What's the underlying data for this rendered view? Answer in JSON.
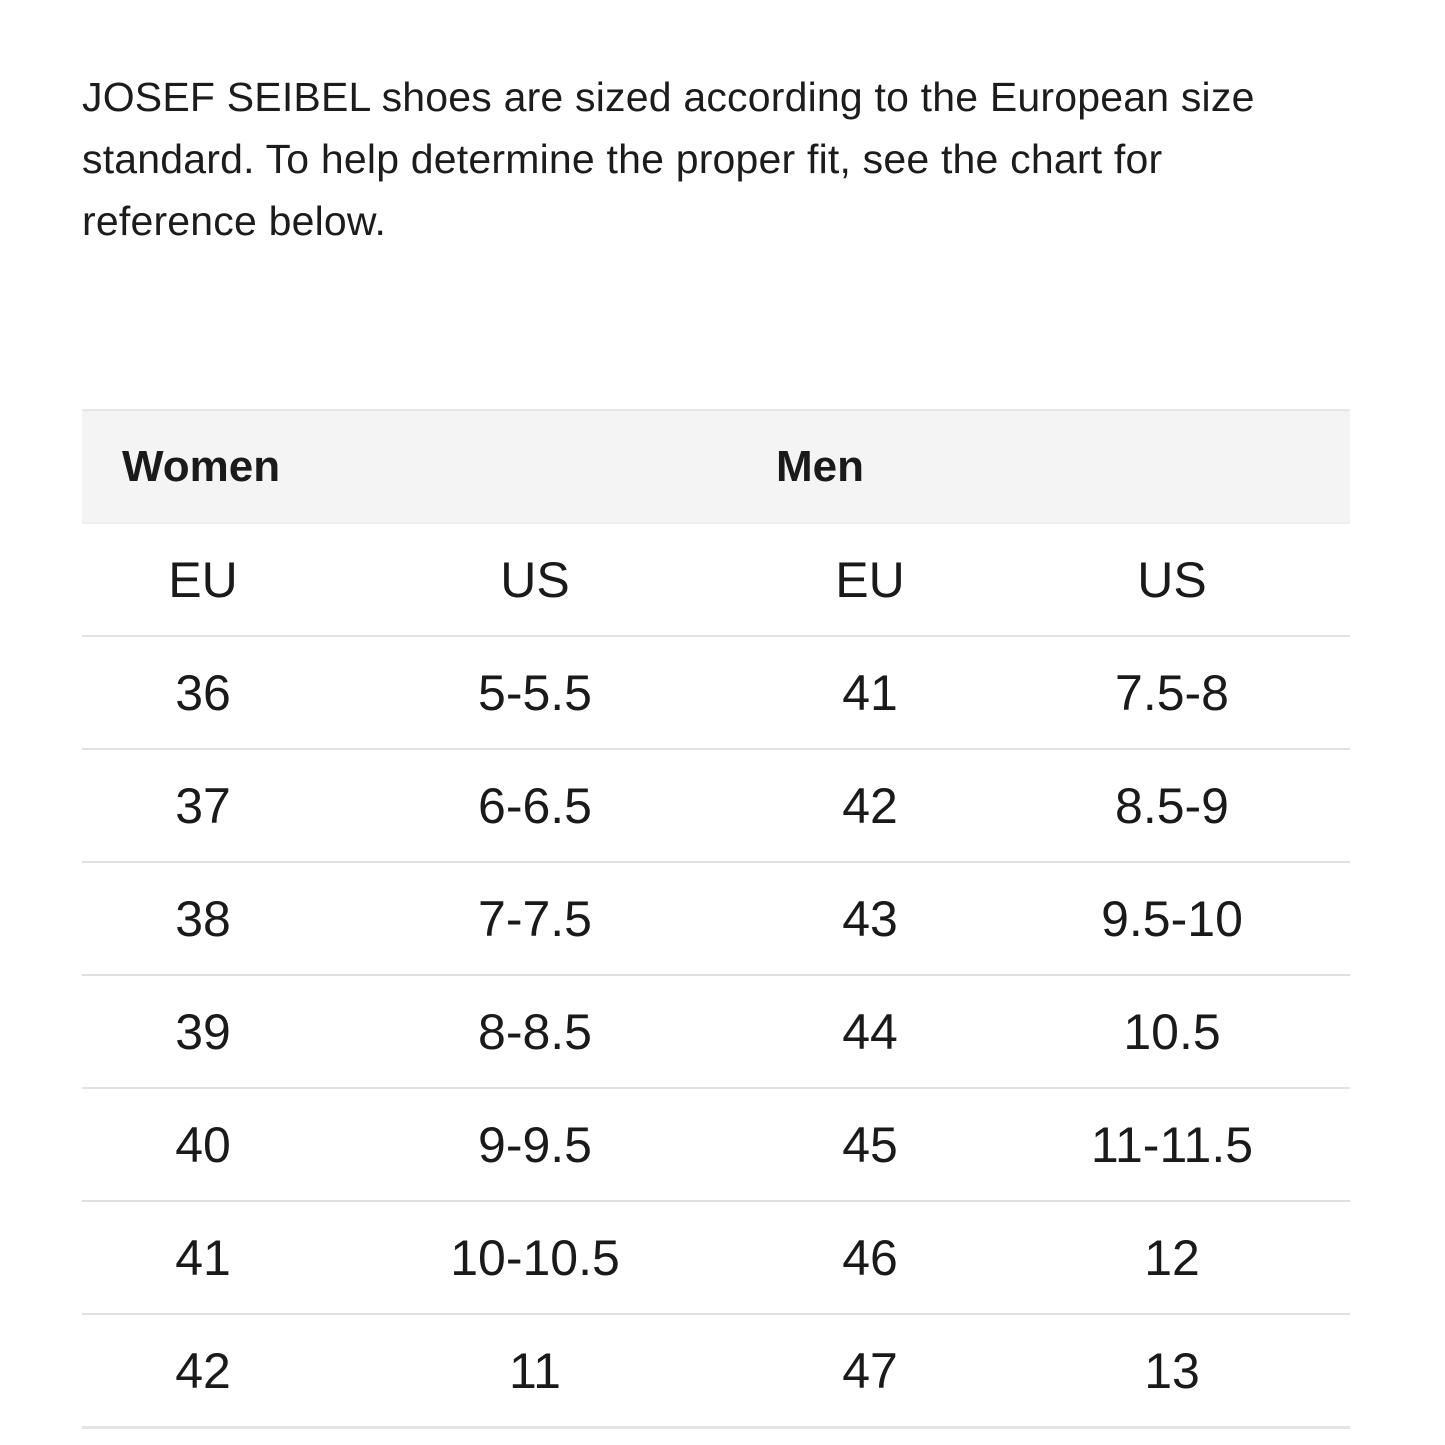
{
  "intro": {
    "lines": [
      "JOSEF SEIBEL shoes are sized according to the European size",
      "standard. To help determine the proper fit, see the chart for",
      "reference below."
    ]
  },
  "size_chart": {
    "group_headers": [
      {
        "label": "Women"
      },
      {
        "label": "Men"
      }
    ],
    "column_headers": [
      "EU",
      "US",
      "EU",
      "US"
    ],
    "rows": [
      [
        "36",
        "5-5.5",
        "41",
        "7.5-8"
      ],
      [
        "37",
        "6-6.5",
        "42",
        "8.5-9"
      ],
      [
        "38",
        "7-7.5",
        "43",
        "9.5-10"
      ],
      [
        "39",
        "8-8.5",
        "44",
        "10.5"
      ],
      [
        "40",
        "9-9.5",
        "45",
        "11-11.5"
      ],
      [
        "41",
        "10-10.5",
        "46",
        "12"
      ],
      [
        "42",
        "11",
        "47",
        "13"
      ]
    ],
    "colors": {
      "header_band_bg": "#f4f4f4",
      "divider": "#e1e1e1",
      "bottom_border": "#e4e4e4",
      "text": "#1a1a1a"
    }
  }
}
